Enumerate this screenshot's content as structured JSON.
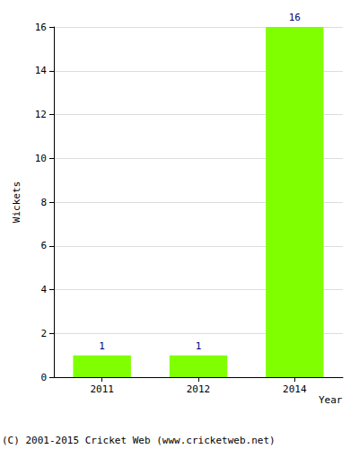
{
  "chart_data": {
    "type": "bar",
    "x_label": "Year",
    "y_label": "Wickets",
    "categories": [
      "2011",
      "2012",
      "2014"
    ],
    "values": [
      1,
      1,
      16
    ],
    "color": "#80ff00",
    "ylim": [
      0,
      16
    ],
    "yticks": [
      0,
      2,
      4,
      6,
      8,
      10,
      12,
      14,
      16
    ],
    "grid": true,
    "data_labels": true,
    "annotation": "(C) 2001-2015 Cricket Web (www.cricketweb.net)"
  }
}
